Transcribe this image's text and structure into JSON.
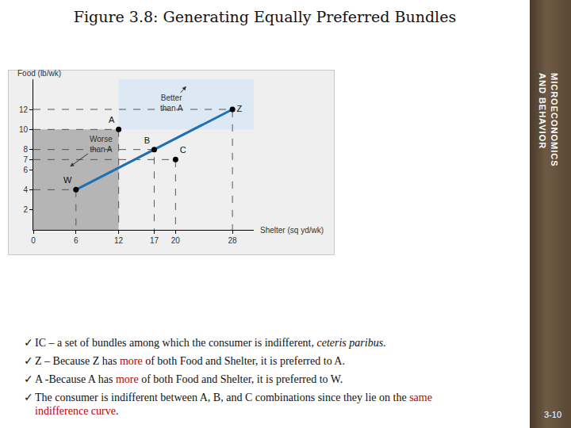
{
  "slide": {
    "title": "Figure 3.8: Generating Equally Preferred Bundles",
    "side_text": [
      "MICROECONOMICS",
      "AND BEHAVIOR"
    ],
    "page": "3-10",
    "bullet_mark": "✓",
    "bullets": [
      [
        {
          "text": "IC"
        },
        {
          "text": " – a set of bundles among which the consumer is indifferent, "
        },
        {
          "text": "ceteris paribus",
          "style": "italic"
        },
        {
          "text": "."
        }
      ],
      [
        {
          "text": "Z – Because Z has "
        },
        {
          "text": "more",
          "style": "red"
        },
        {
          "text": " of both Food and Shelter, it is preferred to A."
        }
      ],
      [
        {
          "text": "A -Because A has "
        },
        {
          "text": "more",
          "style": "red"
        },
        {
          "text": " of both Food and Shelter, it is preferred to W."
        }
      ],
      [
        {
          "text": "The consumer is indifferent between A, B, and C combinations since they lie on the "
        },
        {
          "text": "same indifference curve",
          "style": "red"
        },
        {
          "text": "."
        }
      ]
    ]
  },
  "chart_data": {
    "type": "scatter",
    "xlabel": "Shelter (sq yd/wk)",
    "ylabel": "Food (lb/wk)",
    "xlim": [
      0,
      31
    ],
    "ylim": [
      0,
      15
    ],
    "xticks": [
      0,
      6,
      12,
      17,
      20,
      28
    ],
    "yticks": [
      2,
      4,
      6,
      7,
      8,
      10,
      12
    ],
    "grid": false,
    "series": [
      {
        "type": "line",
        "color": "#1f6fb4",
        "x": [
          6,
          28
        ],
        "y": [
          4,
          12
        ]
      },
      {
        "type": "scatter",
        "marker": "circle",
        "color": "#000000",
        "x": [
          6,
          12,
          17,
          20,
          28
        ],
        "y": [
          4,
          10,
          8,
          7,
          12
        ],
        "point_labels": [
          "W",
          "A",
          "B",
          "C",
          "Z"
        ]
      }
    ],
    "regions": [
      {
        "label": [
          "Better",
          "than A"
        ],
        "x": [
          12,
          31
        ],
        "y": [
          10,
          15
        ],
        "color": "#dce8f4"
      },
      {
        "label": [
          "Worse",
          "than A"
        ],
        "x": [
          0,
          12
        ],
        "y": [
          0,
          10
        ],
        "color": "#b5b5b5"
      }
    ]
  }
}
